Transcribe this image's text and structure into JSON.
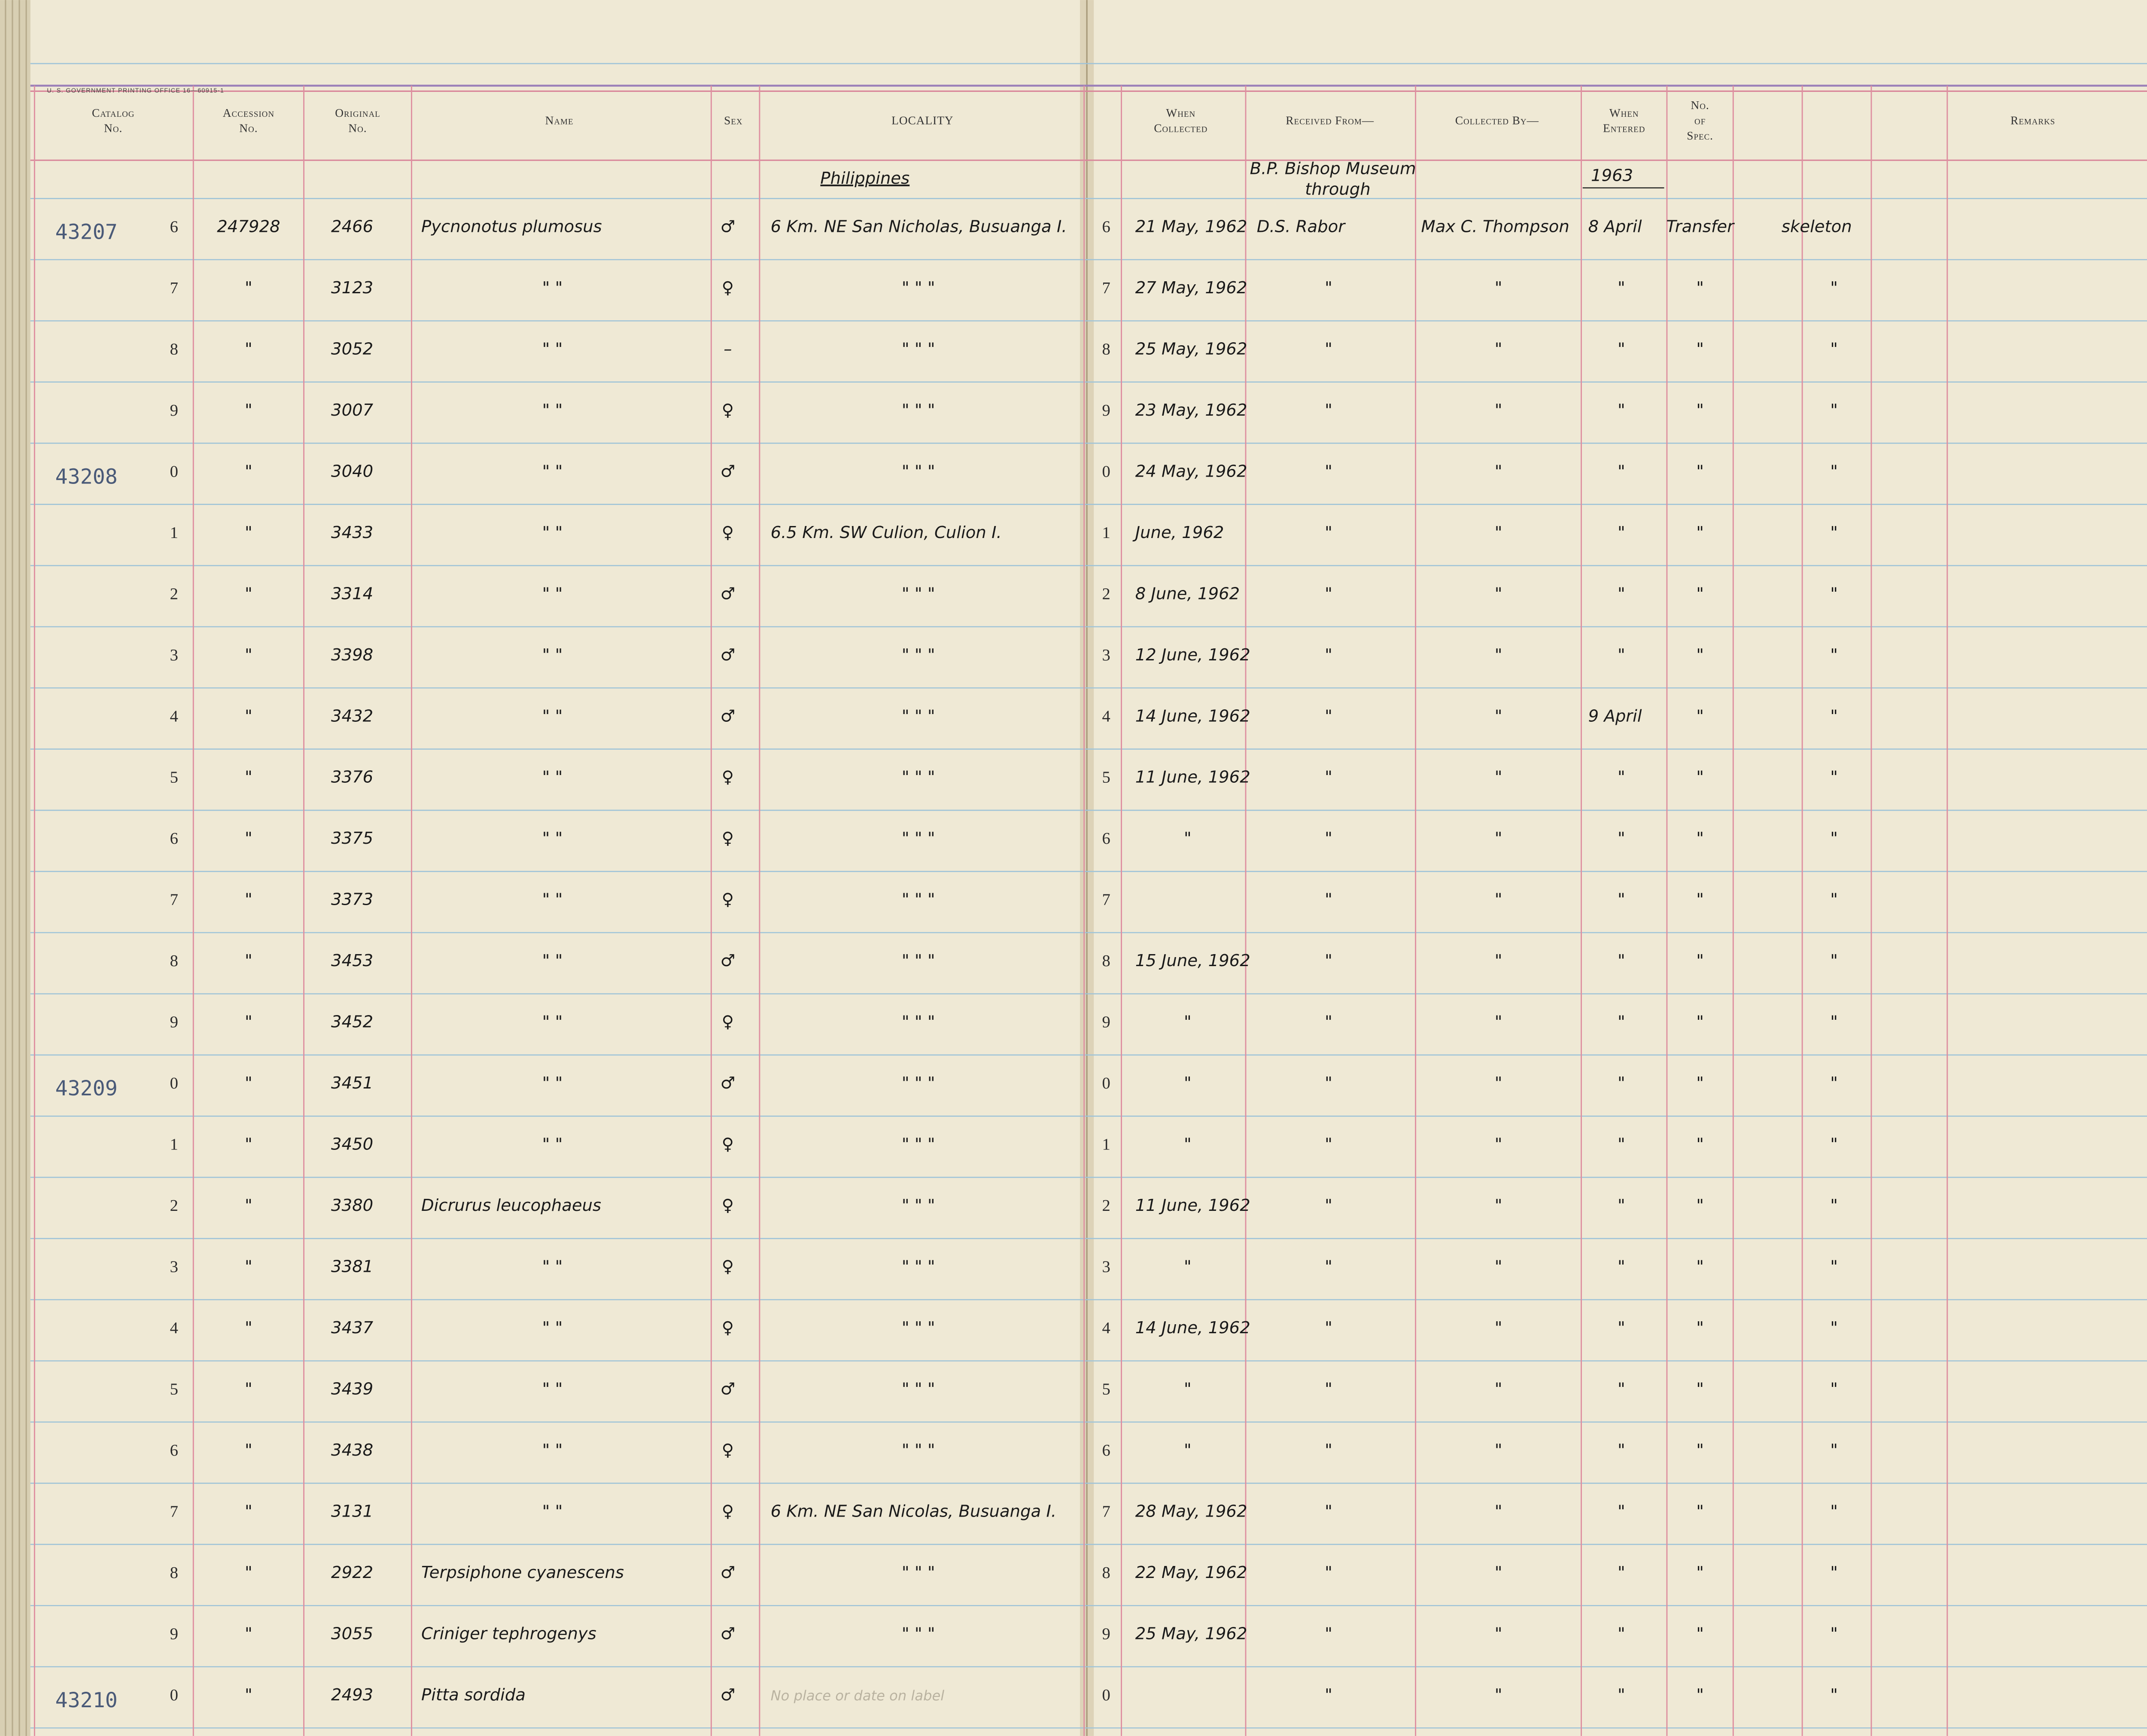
{
  "header": {
    "printer": "U. S. GOVERNMENT PRINTING OFFICE    16—60915-1",
    "columns": [
      [
        "Catalog",
        "No."
      ],
      [
        "Accession",
        "No."
      ],
      [
        "Original",
        "No."
      ],
      [
        "Name"
      ],
      [
        "Sex"
      ],
      [
        "LOCALITY"
      ],
      [
        "When",
        "Collected"
      ],
      [
        "Received From—"
      ],
      [
        "Collected By—"
      ],
      [
        "When",
        "Entered"
      ],
      [
        "No.",
        "of",
        "Spec."
      ],
      [
        "Remarks"
      ]
    ]
  },
  "notes": {
    "country": "Philippines",
    "source": "B.P. Bishop Museum",
    "via": "through",
    "year": "1963"
  },
  "rows": [
    {
      "c": "43207",
      "n": "6",
      "a": "247928",
      "o": "2466",
      "nm": "Pycnonotus plumosus",
      "s": "♂",
      "l": "6 Km. NE San Nicholas, Busuanga I.",
      "r": "6",
      "w": "21 May, 1962",
      "rf": "D.S. Rabor",
      "cb": "Max C. Thompson",
      "we": "8 April",
      "ns": "Transfer",
      "rm": "skeleton"
    },
    {
      "n": "7",
      "a": "\"",
      "o": "3123",
      "nm": "\"            \"",
      "s": "♀",
      "l": "\"        \"        \"",
      "r": "7",
      "w": "27 May, 1962",
      "rf": "\"",
      "cb": "\"",
      "we": "\"",
      "ns": "\"",
      "rm": "\""
    },
    {
      "n": "8",
      "a": "\"",
      "o": "3052",
      "nm": "\"            \"",
      "s": "–",
      "l": "\"        \"        \"",
      "r": "8",
      "w": "25 May, 1962",
      "rf": "\"",
      "cb": "\"",
      "we": "\"",
      "ns": "\"",
      "rm": "\""
    },
    {
      "n": "9",
      "a": "\"",
      "o": "3007",
      "nm": "\"            \"",
      "s": "♀",
      "l": "\"        \"        \"",
      "r": "9",
      "w": "23 May, 1962",
      "rf": "\"",
      "cb": "\"",
      "we": "\"",
      "ns": "\"",
      "rm": "\""
    },
    {
      "c": "43208",
      "n": "0",
      "a": "\"",
      "o": "3040",
      "nm": "\"            \"",
      "s": "♂",
      "l": "\"        \"        \"",
      "r": "0",
      "w": "24 May, 1962",
      "rf": "\"",
      "cb": "\"",
      "we": "\"",
      "ns": "\"",
      "rm": "\""
    },
    {
      "n": "1",
      "a": "\"",
      "o": "3433",
      "nm": "\"            \"",
      "s": "♀",
      "l": "6.5 Km. SW Culion, Culion I.",
      "r": "1",
      "w": "June, 1962",
      "rf": "\"",
      "cb": "\"",
      "we": "\"",
      "ns": "\"",
      "rm": "\""
    },
    {
      "n": "2",
      "a": "\"",
      "o": "3314",
      "nm": "\"            \"",
      "s": "♂",
      "l": "\"        \"        \"",
      "r": "2",
      "w": "8 June, 1962",
      "rf": "\"",
      "cb": "\"",
      "we": "\"",
      "ns": "\"",
      "rm": "\""
    },
    {
      "n": "3",
      "a": "\"",
      "o": "3398",
      "nm": "\"            \"",
      "s": "♂",
      "l": "\"        \"        \"",
      "r": "3",
      "w": "12 June, 1962",
      "rf": "\"",
      "cb": "\"",
      "we": "\"",
      "ns": "\"",
      "rm": "\""
    },
    {
      "n": "4",
      "a": "\"",
      "o": "3432",
      "nm": "\"            \"",
      "s": "♂",
      "l": "\"        \"        \"",
      "r": "4",
      "w": "14 June, 1962",
      "rf": "\"",
      "cb": "\"",
      "we": "9 April",
      "ns": "\"",
      "rm": "\""
    },
    {
      "n": "5",
      "a": "\"",
      "o": "3376",
      "nm": "\"            \"",
      "s": "♀",
      "l": "\"        \"        \"",
      "r": "5",
      "w": "11 June, 1962",
      "rf": "\"",
      "cb": "\"",
      "we": "\"",
      "ns": "\"",
      "rm": "\""
    },
    {
      "n": "6",
      "a": "\"",
      "o": "3375",
      "nm": "\"            \"",
      "s": "♀",
      "l": "\"        \"        \"",
      "r": "6",
      "w": "\"",
      "rf": "\"",
      "cb": "\"",
      "we": "\"",
      "ns": "\"",
      "rm": "\""
    },
    {
      "n": "7",
      "a": "\"",
      "o": "3373",
      "nm": "\"            \"",
      "s": "♀",
      "l": "\"        \"        \"",
      "r": "7",
      "rf": "\"",
      "cb": "\"",
      "we": "\"",
      "ns": "\"",
      "rm": "\""
    },
    {
      "n": "8",
      "a": "\"",
      "o": "3453",
      "nm": "\"            \"",
      "s": "♂",
      "l": "\"        \"        \"",
      "r": "8",
      "w": "15 June, 1962",
      "rf": "\"",
      "cb": "\"",
      "we": "\"",
      "ns": "\"",
      "rm": "\""
    },
    {
      "n": "9",
      "a": "\"",
      "o": "3452",
      "nm": "\"            \"",
      "s": "♀",
      "l": "\"        \"        \"",
      "r": "9",
      "w": "\"",
      "rf": "\"",
      "cb": "\"",
      "we": "\"",
      "ns": "\"",
      "rm": "\""
    },
    {
      "c": "43209",
      "n": "0",
      "a": "\"",
      "o": "3451",
      "nm": "\"            \"",
      "s": "♂",
      "l": "\"        \"        \"",
      "r": "0",
      "w": "\"",
      "rf": "\"",
      "cb": "\"",
      "we": "\"",
      "ns": "\"",
      "rm": "\""
    },
    {
      "n": "1",
      "a": "\"",
      "o": "3450",
      "nm": "\"            \"",
      "s": "♀",
      "l": "\"        \"        \"",
      "r": "1",
      "w": "\"",
      "rf": "\"",
      "cb": "\"",
      "we": "\"",
      "ns": "\"",
      "rm": "\""
    },
    {
      "n": "2",
      "a": "\"",
      "o": "3380",
      "nm": "Dicrurus leucophaeus",
      "s": "♀",
      "l": "\"        \"        \"",
      "r": "2",
      "w": "11 June, 1962",
      "rf": "\"",
      "cb": "\"",
      "we": "\"",
      "ns": "\"",
      "rm": "\""
    },
    {
      "n": "3",
      "a": "\"",
      "o": "3381",
      "nm": "\"            \"",
      "s": "♀",
      "l": "\"        \"        \"",
      "r": "3",
      "w": "\"",
      "rf": "\"",
      "cb": "\"",
      "we": "\"",
      "ns": "\"",
      "rm": "\""
    },
    {
      "n": "4",
      "a": "\"",
      "o": "3437",
      "nm": "\"            \"",
      "s": "♀",
      "l": "\"        \"        \"",
      "r": "4",
      "w": "14 June, 1962",
      "rf": "\"",
      "cb": "\"",
      "we": "\"",
      "ns": "\"",
      "rm": "\""
    },
    {
      "n": "5",
      "a": "\"",
      "o": "3439",
      "nm": "\"            \"",
      "s": "♂",
      "l": "\"        \"        \"",
      "r": "5",
      "w": "\"",
      "rf": "\"",
      "cb": "\"",
      "we": "\"",
      "ns": "\"",
      "rm": "\""
    },
    {
      "n": "6",
      "a": "\"",
      "o": "3438",
      "nm": "\"            \"",
      "s": "♀",
      "l": "\"        \"        \"",
      "r": "6",
      "w": "\"",
      "rf": "\"",
      "cb": "\"",
      "we": "\"",
      "ns": "\"",
      "rm": "\""
    },
    {
      "n": "7",
      "a": "\"",
      "o": "3131",
      "nm": "\"            \"",
      "s": "♀",
      "l": "6 Km. NE San Nicolas, Busuanga I.",
      "r": "7",
      "w": "28 May, 1962",
      "rf": "\"",
      "cb": "\"",
      "we": "\"",
      "ns": "\"",
      "rm": "\""
    },
    {
      "n": "8",
      "a": "\"",
      "o": "2922",
      "nm": "Terpsiphone cyanescens",
      "s": "♂",
      "l": "\"        \"        \"",
      "r": "8",
      "w": "22 May, 1962",
      "rf": "\"",
      "cb": "\"",
      "we": "\"",
      "ns": "\"",
      "rm": "\""
    },
    {
      "n": "9",
      "a": "\"",
      "o": "3055",
      "nm": "Criniger tephrogenys",
      "s": "♂",
      "l": "\"        \"        \"",
      "r": "9",
      "w": "25 May, 1962",
      "rf": "\"",
      "cb": "\"",
      "we": "\"",
      "ns": "\"",
      "rm": "\""
    },
    {
      "c": "43210",
      "n": "0",
      "a": "\"",
      "o": "2493",
      "nm": "Pitta sordida",
      "s": "♂",
      "l": "No place or date on label",
      "r": "0",
      "rf": "\"",
      "cb": "\"",
      "we": "\"",
      "ns": "\"",
      "rm": "\""
    }
  ]
}
